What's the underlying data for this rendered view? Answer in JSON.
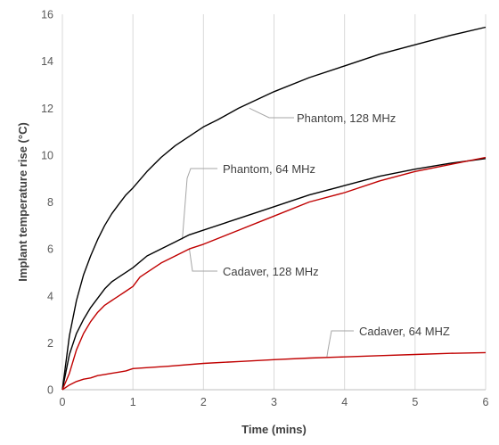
{
  "chart_data": {
    "type": "line",
    "xlabel": "Time (mins)",
    "ylabel": "Implant temperature rise (°C)",
    "xlim": [
      0,
      6
    ],
    "ylim": [
      0,
      16
    ],
    "x_ticks": [
      "0",
      "1",
      "2",
      "3",
      "4",
      "5",
      "6"
    ],
    "y_ticks": [
      "0",
      "2",
      "4",
      "6",
      "8",
      "10",
      "12",
      "14",
      "16"
    ],
    "grid": "vertical",
    "series": [
      {
        "name": "Phantom, 128 MHz",
        "color": "#000000",
        "x": [
          0,
          0.1,
          0.2,
          0.3,
          0.4,
          0.5,
          0.6,
          0.7,
          0.8,
          0.9,
          1.0,
          1.2,
          1.4,
          1.6,
          1.8,
          2.0,
          2.2,
          2.5,
          3.0,
          3.5,
          4.0,
          4.5,
          5.0,
          5.5,
          6.0
        ],
        "y": [
          0,
          2.3,
          3.8,
          4.9,
          5.7,
          6.4,
          7.0,
          7.5,
          7.9,
          8.3,
          8.6,
          9.3,
          9.9,
          10.4,
          10.8,
          11.2,
          11.5,
          12.0,
          12.7,
          13.3,
          13.8,
          14.3,
          14.7,
          15.1,
          15.45
        ]
      },
      {
        "name": "Phantom, 64 MHz",
        "color": "#000000",
        "x": [
          0,
          0.1,
          0.2,
          0.3,
          0.4,
          0.5,
          0.6,
          0.7,
          0.8,
          0.9,
          1.0,
          1.2,
          1.4,
          1.6,
          1.8,
          2.0,
          2.5,
          3.0,
          3.5,
          4.0,
          4.5,
          5.0,
          5.5,
          6.0
        ],
        "y": [
          0,
          1.5,
          2.4,
          3.0,
          3.5,
          3.9,
          4.3,
          4.6,
          4.8,
          5.0,
          5.2,
          5.7,
          6.0,
          6.3,
          6.6,
          6.8,
          7.3,
          7.8,
          8.3,
          8.7,
          9.1,
          9.4,
          9.65,
          9.85
        ]
      },
      {
        "name": "Cadaver, 128 MHz",
        "color": "#c00000",
        "x": [
          0,
          0.1,
          0.2,
          0.3,
          0.4,
          0.5,
          0.6,
          0.7,
          0.8,
          0.9,
          1.0,
          1.1,
          1.2,
          1.4,
          1.6,
          1.8,
          2.0,
          2.5,
          3.0,
          3.5,
          4.0,
          4.5,
          5.0,
          5.5,
          6.0
        ],
        "y": [
          0,
          0.7,
          1.7,
          2.4,
          2.9,
          3.3,
          3.6,
          3.8,
          4.0,
          4.2,
          4.4,
          4.8,
          5.0,
          5.4,
          5.7,
          6.0,
          6.2,
          6.8,
          7.4,
          8.0,
          8.4,
          8.9,
          9.3,
          9.6,
          9.9
        ]
      },
      {
        "name": "Cadaver, 64 MHZ",
        "color": "#c00000",
        "x": [
          0,
          0.1,
          0.2,
          0.3,
          0.4,
          0.5,
          0.6,
          0.7,
          0.8,
          0.9,
          1.0,
          1.5,
          2.0,
          2.5,
          3.0,
          3.5,
          4.0,
          4.5,
          5.0,
          5.5,
          6.0
        ],
        "y": [
          0,
          0.2,
          0.35,
          0.45,
          0.5,
          0.6,
          0.65,
          0.7,
          0.75,
          0.8,
          0.9,
          1.0,
          1.12,
          1.2,
          1.28,
          1.35,
          1.4,
          1.45,
          1.5,
          1.55,
          1.58
        ]
      }
    ],
    "annotations": [
      {
        "text": "Phantom, 128 MHz",
        "series": "Phantom, 128 MHz",
        "point_x": 2.65,
        "point_y": 12.0
      },
      {
        "text": "Phantom, 64 MHz",
        "series": "Phantom, 64 MHz",
        "point_x": 1.7,
        "point_y": 6.4
      },
      {
        "text": "Cadaver, 128 MHz",
        "series": "Cadaver, 128 MHz",
        "point_x": 1.8,
        "point_y": 6.0
      },
      {
        "text": "Cadaver, 64 MHZ",
        "series": "Cadaver, 64 MHZ",
        "point_x": 3.75,
        "point_y": 1.4
      }
    ]
  }
}
